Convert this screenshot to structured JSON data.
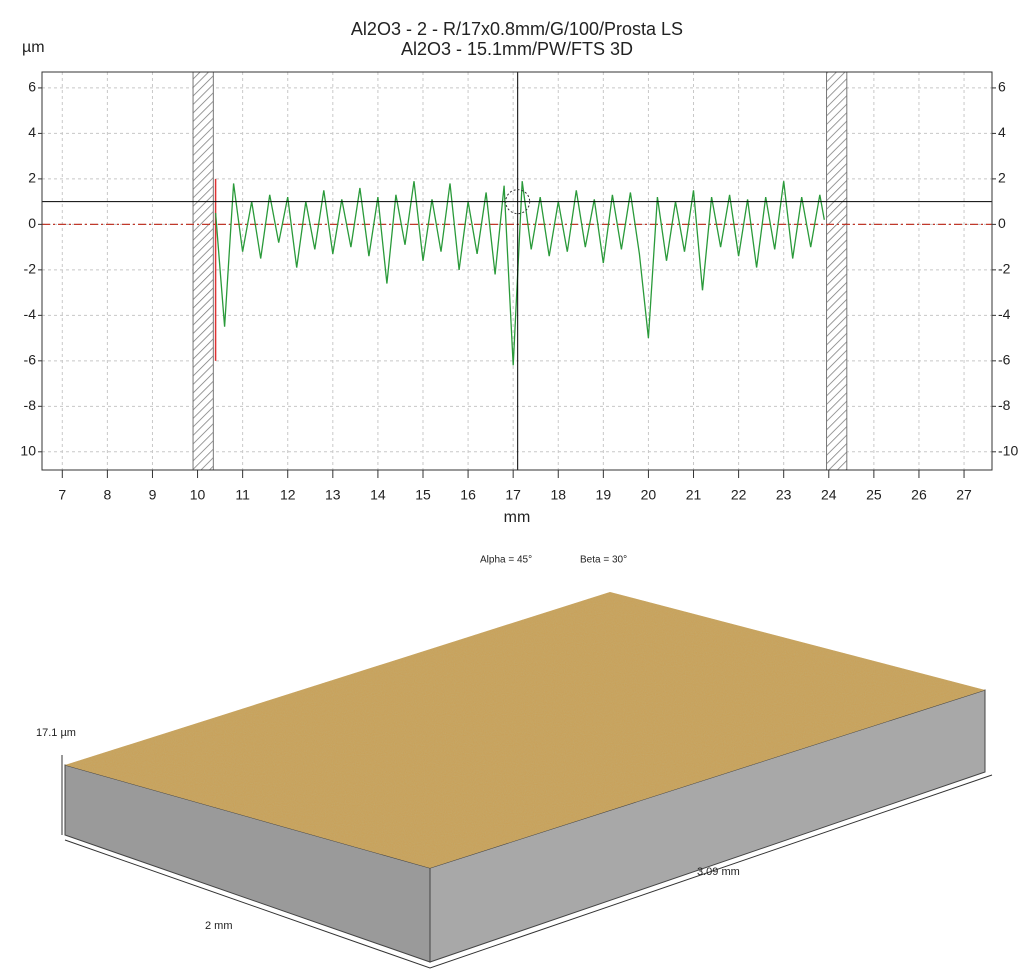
{
  "chart_data": {
    "type": "line",
    "title": "Al2O3 - 2 - R/17x0.8mm/G/100/Prosta LS",
    "subtitle": "Al2O3 - 15.1mm/PW/FTS 3D",
    "y_label": "µm",
    "x_label": "mm",
    "color": "#2a9a3a",
    "grid": true,
    "xlim": [
      6.55,
      27.62
    ],
    "ylim": [
      -10.8,
      6.7
    ],
    "y2lim": [
      -10.8,
      6.7
    ],
    "xticks": [
      7,
      8,
      9,
      10,
      11,
      12,
      13,
      14,
      15,
      16,
      17,
      18,
      19,
      20,
      21,
      22,
      23,
      24,
      25,
      26,
      27
    ],
    "yticks": [
      6,
      4,
      2,
      0,
      -2,
      -4,
      -6,
      -8,
      {
        "value": -10,
        "label": "10"
      }
    ],
    "y2ticks": [
      6,
      4,
      2,
      0,
      -2,
      -4,
      -6,
      -8,
      -10
    ],
    "cursor": {
      "x": 17.1,
      "y": 1
    },
    "mask": [
      [
        9.9,
        10.35
      ],
      [
        23.95,
        24.4
      ]
    ],
    "x": [
      10.4,
      10.6,
      10.8,
      11.0,
      11.2,
      11.4,
      11.6,
      11.8,
      12.0,
      12.2,
      12.4,
      12.6,
      12.8,
      13.0,
      13.2,
      13.4,
      13.6,
      13.8,
      14.0,
      14.2,
      14.4,
      14.6,
      14.8,
      15.0,
      15.2,
      15.4,
      15.6,
      15.8,
      16.0,
      16.2,
      16.4,
      16.6,
      16.8,
      17.0,
      17.2,
      17.4,
      17.6,
      17.8,
      18.0,
      18.2,
      18.4,
      18.6,
      18.8,
      19.0,
      19.2,
      19.4,
      19.6,
      19.8,
      20.0,
      20.2,
      20.4,
      20.6,
      20.8,
      21.0,
      21.2,
      21.4,
      21.6,
      21.8,
      22.0,
      22.2,
      22.4,
      22.6,
      22.8,
      23.0,
      23.2,
      23.4,
      23.6,
      23.8,
      23.9
    ],
    "values": [
      0.5,
      -4.5,
      1.8,
      -1.2,
      1.0,
      -1.5,
      1.3,
      -0.8,
      1.2,
      -1.9,
      1.0,
      -1.1,
      1.5,
      -1.3,
      1.1,
      -1.0,
      1.6,
      -1.4,
      1.2,
      -2.6,
      1.3,
      -0.9,
      1.9,
      -1.6,
      1.1,
      -1.2,
      1.8,
      -2.0,
      1.0,
      -1.3,
      1.4,
      -2.2,
      1.7,
      -6.2,
      1.9,
      -1.1,
      1.2,
      -1.4,
      1.0,
      -1.2,
      1.5,
      -1.0,
      1.1,
      -1.7,
      1.3,
      -1.1,
      1.4,
      -1.3,
      -5.0,
      1.2,
      -1.6,
      1.0,
      -1.2,
      1.5,
      -2.9,
      1.2,
      -1.0,
      1.3,
      -1.4,
      1.1,
      -1.9,
      1.2,
      -1.1,
      1.9,
      -1.5,
      1.2,
      -1.0,
      1.3,
      0.2
    ]
  },
  "view3d": {
    "alpha": "Alpha = 45°",
    "beta": "Beta = 30°",
    "z_label": "17.1 µm",
    "y_label": "2 mm",
    "x_label": "3.09 mm"
  }
}
